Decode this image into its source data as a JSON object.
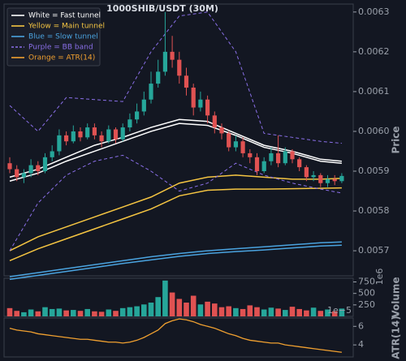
{
  "chart_data": [
    {
      "type": "candlestick",
      "title": "1000SHIB/USDT (30M)",
      "ylabel": "Price",
      "up_color": "#26a69a",
      "down_color": "#e05252",
      "open": [
        0.00592,
        0.005905,
        0.005885,
        0.005895,
        0.005915,
        0.0059,
        0.005935,
        0.00595,
        0.00599,
        0.005975,
        0.006,
        0.005985,
        0.00601,
        0.00599,
        0.005975,
        0.006005,
        0.00598,
        0.00601,
        0.00603,
        0.00605,
        0.00608,
        0.00612,
        0.00615,
        0.0062,
        0.00618,
        0.00614,
        0.00611,
        0.00606,
        0.00608,
        0.00604,
        0.00601,
        0.005995,
        0.00596,
        0.005975,
        0.005945,
        0.005935,
        0.0059,
        0.005925,
        0.005945,
        0.00592,
        0.00595,
        0.00593,
        0.00591,
        0.005885,
        0.00589,
        0.00587,
        0.00588,
        0.005875
      ],
      "high": [
        0.005935,
        0.005915,
        0.005905,
        0.00593,
        0.005925,
        0.005945,
        0.005965,
        0.006005,
        0.006,
        0.006015,
        0.00601,
        0.00602,
        0.00602,
        0.006,
        0.006015,
        0.00601,
        0.00602,
        0.006045,
        0.00607,
        0.0061,
        0.00615,
        0.00618,
        0.0063,
        0.00624,
        0.0062,
        0.00616,
        0.00612,
        0.0061,
        0.00609,
        0.00605,
        0.00602,
        0.006,
        0.00599,
        0.005985,
        0.005955,
        0.005945,
        0.005935,
        0.00596,
        0.00599,
        0.00596,
        0.005955,
        0.005935,
        0.005915,
        0.0059,
        0.005895,
        0.00589,
        0.00589,
        0.005895
      ],
      "low": [
        0.005895,
        0.005875,
        0.00587,
        0.005885,
        0.00589,
        0.005895,
        0.005925,
        0.00594,
        0.005965,
        0.00597,
        0.005975,
        0.00598,
        0.00598,
        0.00596,
        0.00597,
        0.00597,
        0.005975,
        0.006,
        0.00602,
        0.00604,
        0.00607,
        0.00611,
        0.00614,
        0.00616,
        0.00612,
        0.00609,
        0.00604,
        0.00605,
        0.00602,
        0.005995,
        0.00598,
        0.00595,
        0.00595,
        0.005935,
        0.00592,
        0.00589,
        0.005895,
        0.005915,
        0.00591,
        0.005915,
        0.00592,
        0.0059,
        0.005875,
        0.005875,
        0.00586,
        0.00586,
        0.005865,
        0.00587
      ],
      "close": [
        0.005905,
        0.005885,
        0.005895,
        0.005915,
        0.0059,
        0.005935,
        0.00595,
        0.00599,
        0.005975,
        0.006,
        0.005985,
        0.00601,
        0.00599,
        0.005975,
        0.006005,
        0.00598,
        0.00601,
        0.00603,
        0.00605,
        0.00608,
        0.00612,
        0.00615,
        0.0062,
        0.00618,
        0.00614,
        0.00611,
        0.00606,
        0.00608,
        0.00604,
        0.00601,
        0.005995,
        0.00596,
        0.005975,
        0.005945,
        0.005935,
        0.0059,
        0.005925,
        0.005945,
        0.00592,
        0.00595,
        0.00593,
        0.00591,
        0.005885,
        0.00589,
        0.00587,
        0.00588,
        0.005875,
        0.005888
      ],
      "overlay_x": [
        0,
        4,
        8,
        12,
        16,
        20,
        24,
        28,
        32,
        36,
        40,
        44,
        47
      ],
      "overlays": [
        {
          "name": "White = Fast tunnel",
          "color": "#ffffff",
          "dash": false,
          "lines": [
            [
              0.005885,
              0.005905,
              0.005935,
              0.005965,
              0.005985,
              0.00601,
              0.00603,
              0.006025,
              0.005995,
              0.005965,
              0.00595,
              0.00593,
              0.005925
            ],
            [
              0.005875,
              0.005895,
              0.005925,
              0.00595,
              0.005975,
              0.006,
              0.00602,
              0.006015,
              0.00599,
              0.00596,
              0.005945,
              0.005925,
              0.00592
            ]
          ]
        },
        {
          "name": "Yellow = Main tunnel",
          "color": "#f5c542",
          "dash": false,
          "lines": [
            [
              0.0057,
              0.005735,
              0.00576,
              0.005785,
              0.00581,
              0.005835,
              0.00587,
              0.005885,
              0.00589,
              0.005885,
              0.00588,
              0.00588,
              0.005882
            ],
            [
              0.005675,
              0.005705,
              0.00573,
              0.005755,
              0.00578,
              0.005805,
              0.005838,
              0.005852,
              0.005855,
              0.005855,
              0.005856,
              0.005857,
              0.005858
            ]
          ]
        },
        {
          "name": "Blue = Slow tunnel",
          "color": "#4aa3df",
          "dash": false,
          "lines": [
            [
              0.005635,
              0.005645,
              0.005655,
              0.005665,
              0.005675,
              0.005685,
              0.005693,
              0.0057,
              0.005705,
              0.00571,
              0.005715,
              0.00572,
              0.005722
            ],
            [
              0.005628,
              0.005638,
              0.005648,
              0.005658,
              0.005668,
              0.005677,
              0.005686,
              0.005693,
              0.005698,
              0.005702,
              0.005707,
              0.005712,
              0.005714
            ]
          ]
        },
        {
          "name": "Purple = BB band",
          "color": "#8a6fe8",
          "dash": true,
          "lines": [
            [
              0.006065,
              0.006,
              0.006085,
              0.00608,
              0.006075,
              0.0062,
              0.00629,
              0.0063,
              0.0062,
              0.005995,
              0.005985,
              0.005975,
              0.00597
            ],
            [
              0.0057,
              0.00582,
              0.00589,
              0.005925,
              0.00594,
              0.0059,
              0.00585,
              0.00587,
              0.00592,
              0.00589,
              0.00587,
              0.005855,
              0.005845
            ]
          ]
        }
      ],
      "legend_position": "upper left",
      "ylim": [
        0.005637,
        0.00632
      ],
      "yticks": [
        0.0057,
        0.0058,
        0.0059,
        {
          "value": 0.006,
          "label": "0.0060"
        },
        0.0061,
        0.0062,
        0.0063
      ]
    },
    {
      "type": "bar",
      "ylabel": "Volume",
      "offset_label": "1e6",
      "values": [
        180,
        120,
        90,
        150,
        110,
        200,
        160,
        170,
        130,
        140,
        120,
        160,
        110,
        100,
        150,
        120,
        180,
        200,
        220,
        260,
        300,
        420,
        780,
        520,
        380,
        300,
        450,
        260,
        320,
        280,
        200,
        220,
        180,
        160,
        240,
        200,
        150,
        190,
        170,
        140,
        210,
        160,
        130,
        190,
        120,
        150,
        110,
        170
      ],
      "ylim": [
        0,
        830
      ],
      "yticks": [
        250,
        500,
        750
      ]
    },
    {
      "type": "line",
      "ylabel": "ATR(14)",
      "offset_label": "1e−5",
      "series": [
        {
          "name": "Orange = ATR(14)",
          "color": "#f0a030",
          "values": [
            5.8,
            5.6,
            5.5,
            5.4,
            5.2,
            5.1,
            5.0,
            4.9,
            4.8,
            4.7,
            4.6,
            4.6,
            4.5,
            4.4,
            4.3,
            4.3,
            4.2,
            4.3,
            4.5,
            4.8,
            5.2,
            5.6,
            6.3,
            6.6,
            6.8,
            6.7,
            6.5,
            6.2,
            6.0,
            5.8,
            5.5,
            5.2,
            5.0,
            4.7,
            4.5,
            4.4,
            4.3,
            4.2,
            4.2,
            4.0,
            3.9,
            3.8,
            3.7,
            3.6,
            3.5,
            3.4,
            3.3,
            3.2
          ]
        }
      ],
      "ylim": [
        2.7,
        6.9
      ],
      "yticks": [
        4,
        6
      ]
    }
  ]
}
